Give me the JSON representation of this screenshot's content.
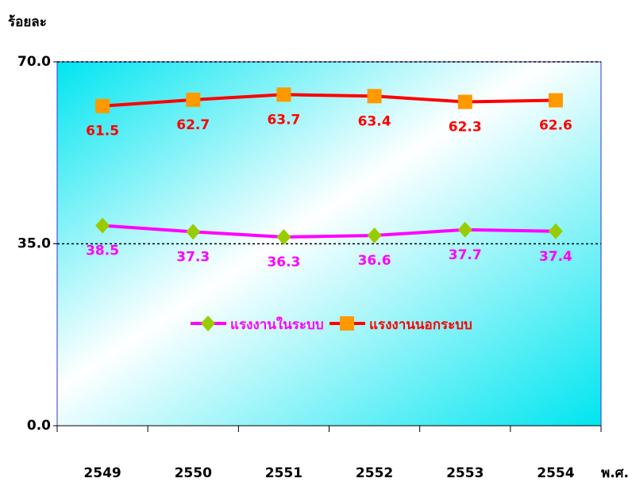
{
  "chart_data": {
    "type": "line",
    "ylabel": "ร้อยละ",
    "xlabel": "พ.ศ.",
    "categories": [
      "2549",
      "2550",
      "2551",
      "2552",
      "2553",
      "2554"
    ],
    "series": [
      {
        "name": "แรงงานในระบบ",
        "color": "#ff00ff",
        "marker_color": "#99cc00",
        "marker": "diamond",
        "values": [
          38.5,
          37.3,
          36.3,
          36.6,
          37.7,
          37.4
        ]
      },
      {
        "name": "แรงงานนอกระบบ",
        "color": "#ff0000",
        "marker_color": "#ff9900",
        "marker": "square",
        "values": [
          61.5,
          62.7,
          63.7,
          63.4,
          62.3,
          62.6
        ]
      }
    ],
    "ylim": [
      0,
      70
    ],
    "yticks": [
      {
        "value": 0,
        "label": "0.0"
      },
      {
        "value": 35,
        "label": "35.0"
      },
      {
        "value": 70,
        "label": "70.0"
      }
    ],
    "grid": true,
    "legend": "center"
  }
}
